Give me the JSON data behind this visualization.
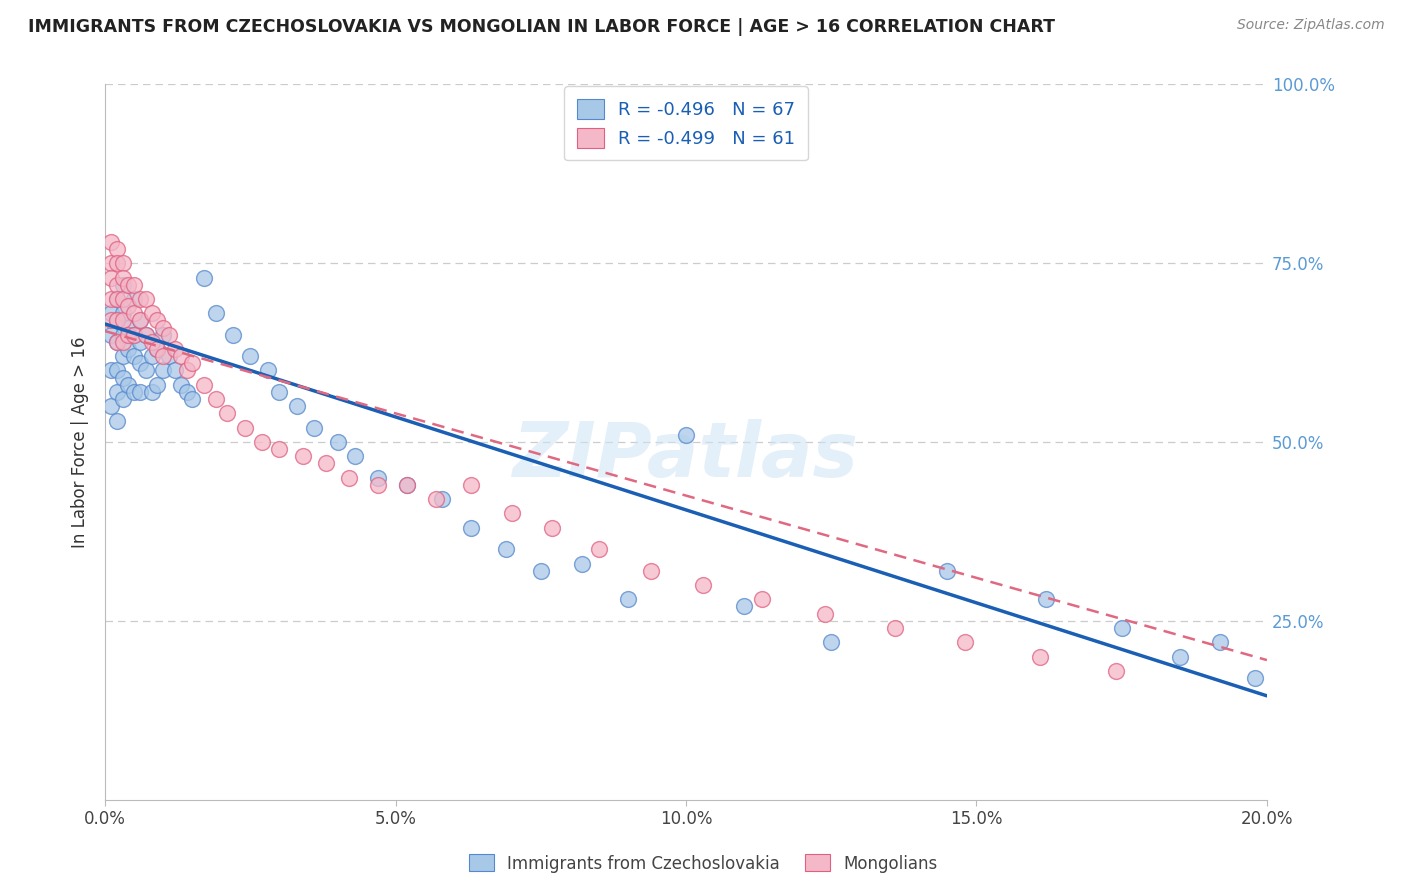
{
  "title": "IMMIGRANTS FROM CZECHOSLOVAKIA VS MONGOLIAN IN LABOR FORCE | AGE > 16 CORRELATION CHART",
  "source": "Source: ZipAtlas.com",
  "ylabel": "In Labor Force | Age > 16",
  "legend_entry1": "R = -0.496   N = 67",
  "legend_entry2": "R = -0.499   N = 61",
  "xlim": [
    0.0,
    0.2
  ],
  "ylim": [
    0.0,
    1.0
  ],
  "xticks": [
    0.0,
    0.05,
    0.1,
    0.15,
    0.2
  ],
  "xtick_labels": [
    "0.0%",
    "5.0%",
    "10.0%",
    "15.0%",
    "20.0%"
  ],
  "yticks": [
    0.25,
    0.5,
    0.75,
    1.0
  ],
  "ytick_labels": [
    "25.0%",
    "50.0%",
    "75.0%",
    "100.0%"
  ],
  "blue_color": "#a8c8e8",
  "pink_color": "#f4b8c8",
  "blue_edge_color": "#5588cc",
  "pink_edge_color": "#e06080",
  "blue_line_color": "#1a5fb4",
  "pink_line_color": "#e06880",
  "watermark": "ZIPatlas",
  "blue_line_x0": 0.0,
  "blue_line_y0": 0.665,
  "blue_line_x1": 0.2,
  "blue_line_y1": 0.145,
  "pink_line_x0": 0.0,
  "pink_line_y0": 0.655,
  "pink_line_x1": 0.2,
  "pink_line_y1": 0.195,
  "blue_scatter_x": [
    0.001,
    0.001,
    0.001,
    0.001,
    0.002,
    0.002,
    0.002,
    0.002,
    0.002,
    0.002,
    0.003,
    0.003,
    0.003,
    0.003,
    0.003,
    0.003,
    0.004,
    0.004,
    0.004,
    0.005,
    0.005,
    0.005,
    0.005,
    0.006,
    0.006,
    0.006,
    0.006,
    0.007,
    0.007,
    0.008,
    0.008,
    0.009,
    0.009,
    0.01,
    0.01,
    0.011,
    0.012,
    0.013,
    0.014,
    0.015,
    0.017,
    0.019,
    0.022,
    0.025,
    0.028,
    0.03,
    0.033,
    0.036,
    0.04,
    0.043,
    0.047,
    0.052,
    0.058,
    0.063,
    0.069,
    0.075,
    0.082,
    0.09,
    0.1,
    0.11,
    0.125,
    0.145,
    0.162,
    0.175,
    0.185,
    0.192,
    0.198
  ],
  "blue_scatter_y": [
    0.68,
    0.65,
    0.6,
    0.55,
    0.7,
    0.67,
    0.64,
    0.6,
    0.57,
    0.53,
    0.72,
    0.68,
    0.65,
    0.62,
    0.59,
    0.56,
    0.66,
    0.63,
    0.58,
    0.7,
    0.65,
    0.62,
    0.57,
    0.67,
    0.64,
    0.61,
    0.57,
    0.65,
    0.6,
    0.62,
    0.57,
    0.63,
    0.58,
    0.65,
    0.6,
    0.62,
    0.6,
    0.58,
    0.57,
    0.56,
    0.73,
    0.68,
    0.65,
    0.62,
    0.6,
    0.57,
    0.55,
    0.52,
    0.5,
    0.48,
    0.45,
    0.44,
    0.42,
    0.38,
    0.35,
    0.32,
    0.33,
    0.28,
    0.51,
    0.27,
    0.22,
    0.32,
    0.28,
    0.24,
    0.2,
    0.22,
    0.17
  ],
  "pink_scatter_x": [
    0.001,
    0.001,
    0.001,
    0.001,
    0.001,
    0.002,
    0.002,
    0.002,
    0.002,
    0.002,
    0.002,
    0.003,
    0.003,
    0.003,
    0.003,
    0.003,
    0.004,
    0.004,
    0.004,
    0.005,
    0.005,
    0.005,
    0.006,
    0.006,
    0.007,
    0.007,
    0.008,
    0.008,
    0.009,
    0.009,
    0.01,
    0.01,
    0.011,
    0.012,
    0.013,
    0.014,
    0.015,
    0.017,
    0.019,
    0.021,
    0.024,
    0.027,
    0.03,
    0.034,
    0.038,
    0.042,
    0.047,
    0.052,
    0.057,
    0.063,
    0.07,
    0.077,
    0.085,
    0.094,
    0.103,
    0.113,
    0.124,
    0.136,
    0.148,
    0.161,
    0.174
  ],
  "pink_scatter_y": [
    0.78,
    0.75,
    0.73,
    0.7,
    0.67,
    0.77,
    0.75,
    0.72,
    0.7,
    0.67,
    0.64,
    0.75,
    0.73,
    0.7,
    0.67,
    0.64,
    0.72,
    0.69,
    0.65,
    0.72,
    0.68,
    0.65,
    0.7,
    0.67,
    0.7,
    0.65,
    0.68,
    0.64,
    0.67,
    0.63,
    0.66,
    0.62,
    0.65,
    0.63,
    0.62,
    0.6,
    0.61,
    0.58,
    0.56,
    0.54,
    0.52,
    0.5,
    0.49,
    0.48,
    0.47,
    0.45,
    0.44,
    0.44,
    0.42,
    0.44,
    0.4,
    0.38,
    0.35,
    0.32,
    0.3,
    0.28,
    0.26,
    0.24,
    0.22,
    0.2,
    0.18
  ]
}
